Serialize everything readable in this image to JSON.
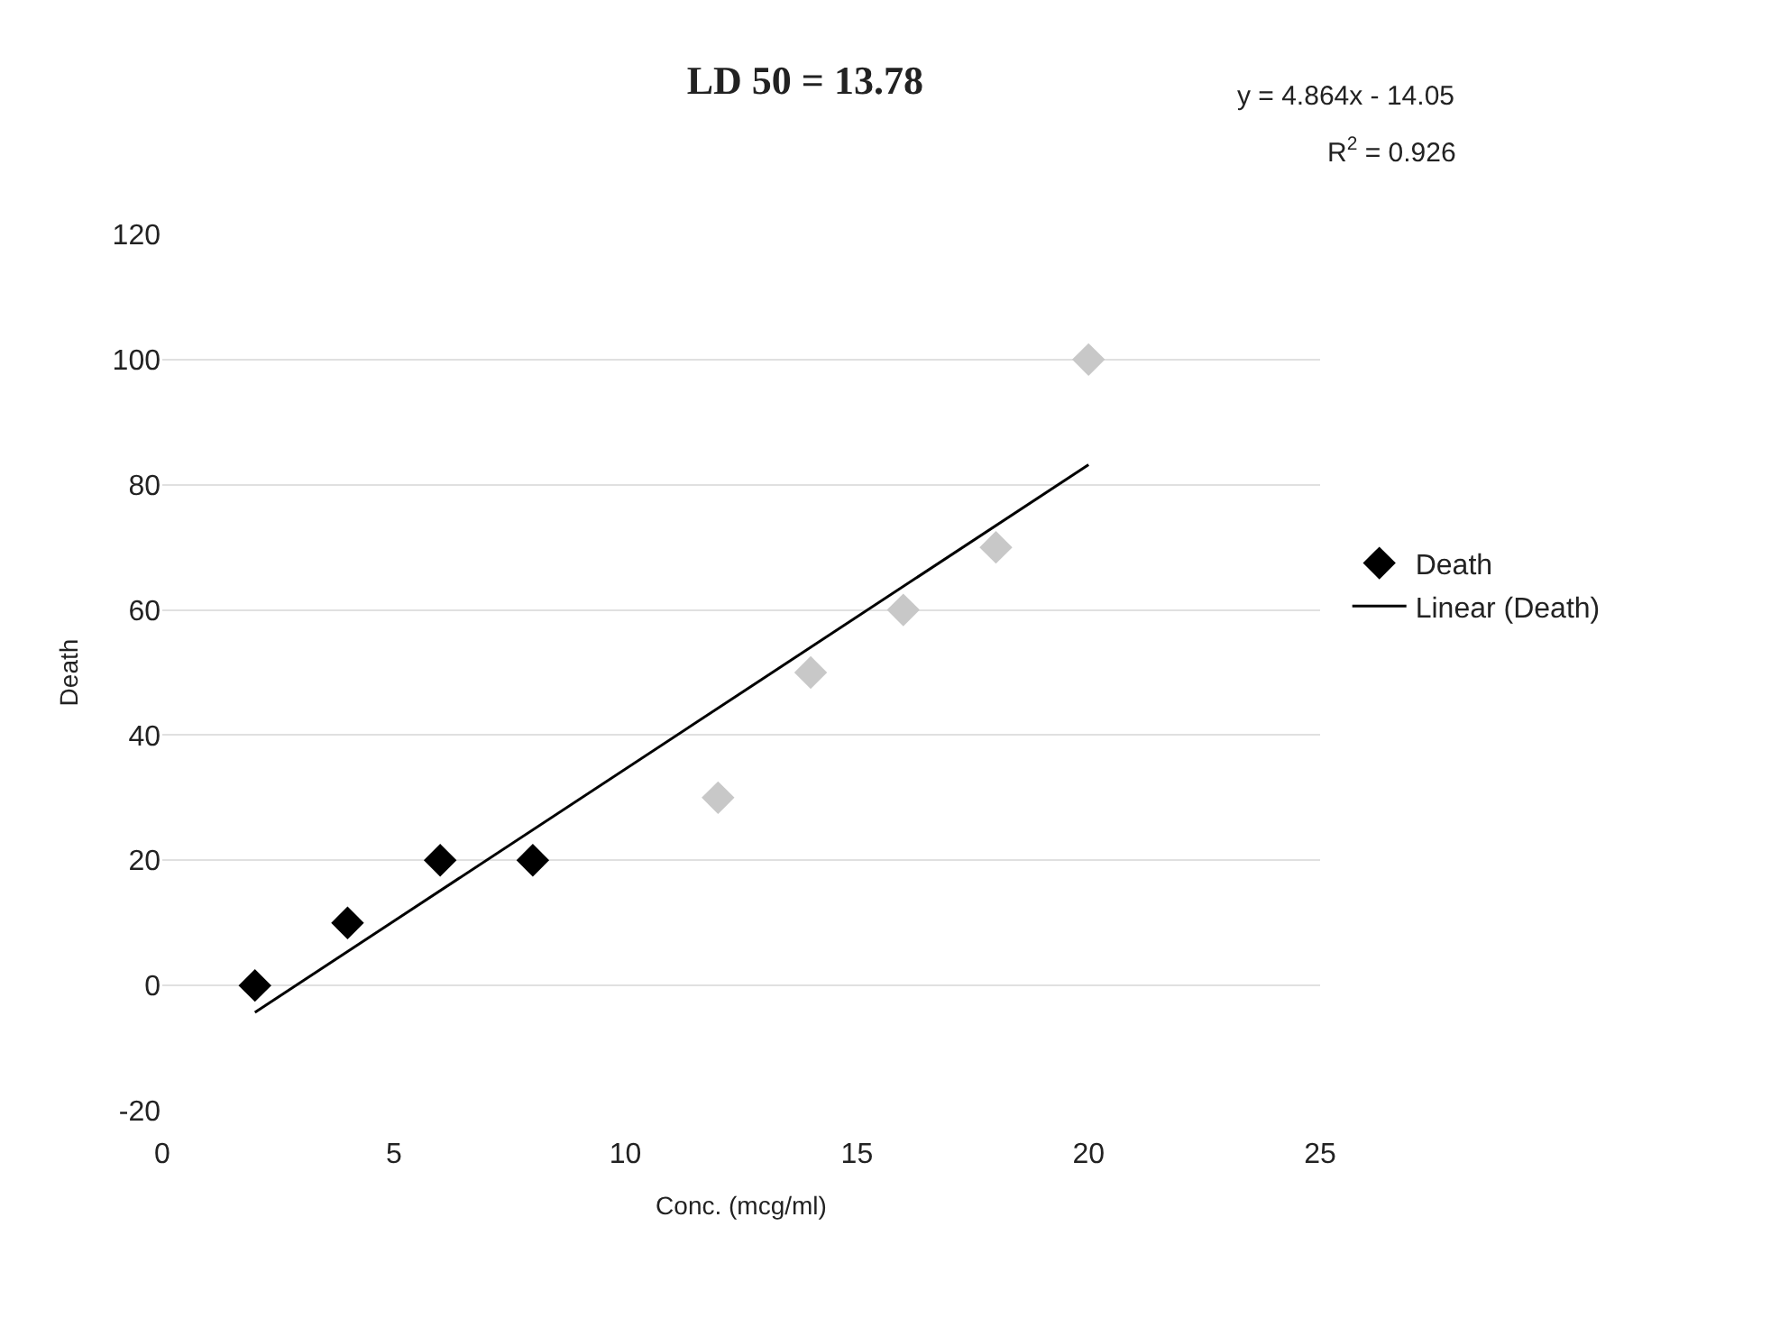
{
  "chart_data": {
    "type": "scatter",
    "title": "LD 50 = 13.78",
    "xlabel": "Conc. (mcg/ml)",
    "ylabel": "Death",
    "annotations": [
      "y = 4.864x - 14.05",
      "R$^{2}$ = 0.926"
    ],
    "xlim": [
      0,
      25
    ],
    "xticks": [
      0,
      5,
      10,
      15,
      20,
      25
    ],
    "ylim": [
      -20,
      120
    ],
    "yticks": [
      -20,
      0,
      20,
      40,
      60,
      80,
      100,
      120
    ],
    "grid": "y",
    "legend": "right",
    "series": [
      {
        "name": "Death",
        "marker": "diamond",
        "x": [
          2,
          4,
          6,
          8,
          12,
          14,
          16,
          18,
          20
        ],
        "values": [
          0,
          10,
          20,
          20,
          30,
          50,
          60,
          70,
          100
        ],
        "colors": [
          "#000000",
          "#000000",
          "#000000",
          "#000000",
          "#c8c8c8",
          "#c8c8c8",
          "#c8c8c8",
          "#c8c8c8",
          "#c8c8c8"
        ]
      },
      {
        "name": "Linear (Death)",
        "type": "line",
        "color": "#000000",
        "x": [
          2,
          20
        ],
        "values": [
          -4.3,
          83.2
        ],
        "line_style": "solid"
      }
    ]
  }
}
